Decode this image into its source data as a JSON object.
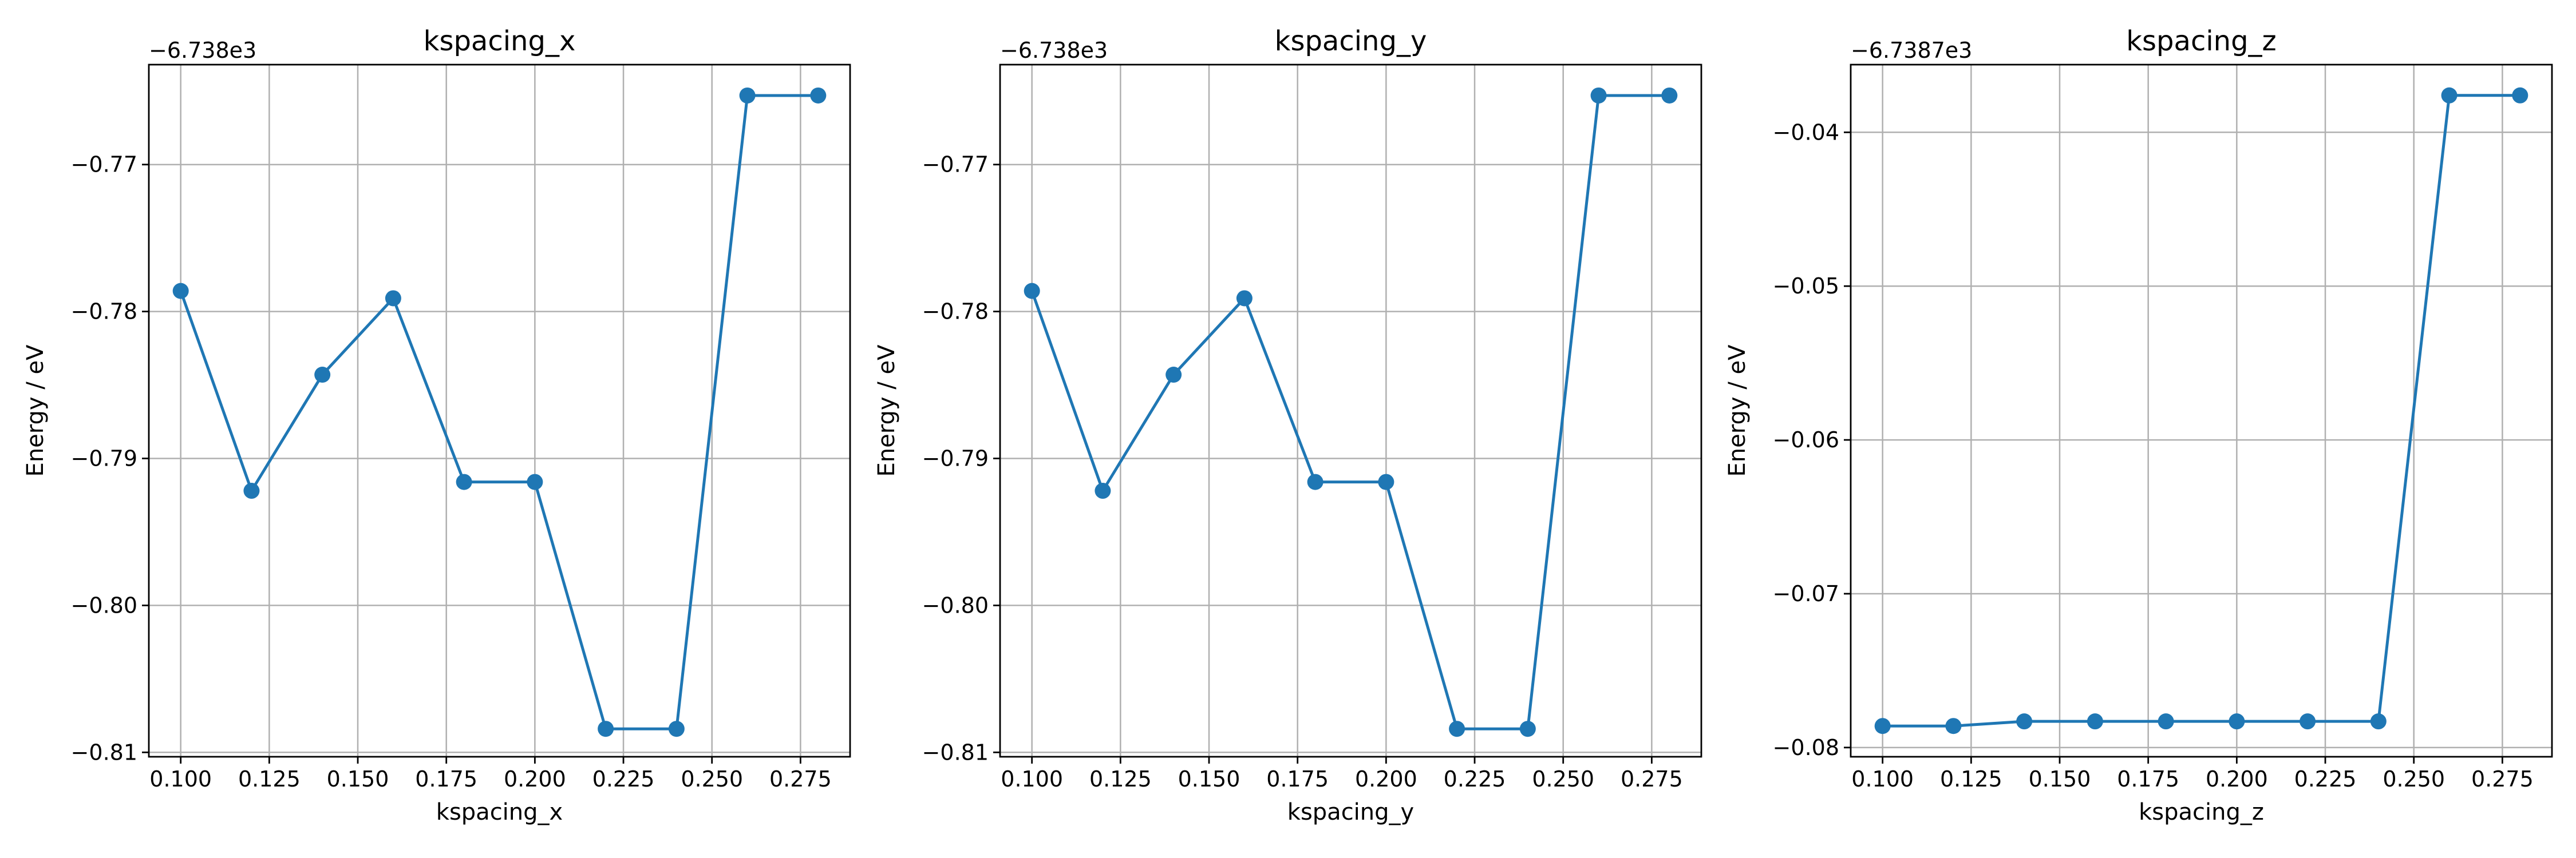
{
  "figure": {
    "background": "#ffffff",
    "series_color": "#1f77b4",
    "grid": true
  },
  "chart_data": [
    {
      "type": "line",
      "title": "kspacing_x",
      "xlabel": "kspacing_x",
      "ylabel": "Energy / eV",
      "y_offset_label": "−6.738e3",
      "x": [
        0.1,
        0.12,
        0.14,
        0.16,
        0.18,
        0.2,
        0.22,
        0.24,
        0.26,
        0.28
      ],
      "y": [
        -0.7786,
        -0.7922,
        -0.7843,
        -0.7791,
        -0.7916,
        -0.7916,
        -0.8084,
        -0.8084,
        -0.7653,
        -0.7653
      ],
      "xlim": [
        0.091,
        0.289
      ],
      "ylim": [
        -0.8103,
        -0.7632
      ],
      "xticks": [
        0.1,
        0.125,
        0.15,
        0.175,
        0.2,
        0.225,
        0.25,
        0.275
      ],
      "xtick_labels": [
        "0.100",
        "0.125",
        "0.150",
        "0.175",
        "0.200",
        "0.225",
        "0.250",
        "0.275"
      ],
      "yticks": [
        -0.81,
        -0.8,
        -0.79,
        -0.78,
        -0.77
      ],
      "ytick_labels": [
        "−0.81",
        "−0.80",
        "−0.79",
        "−0.78",
        "−0.77"
      ]
    },
    {
      "type": "line",
      "title": "kspacing_y",
      "xlabel": "kspacing_y",
      "ylabel": "Energy / eV",
      "y_offset_label": "−6.738e3",
      "x": [
        0.1,
        0.12,
        0.14,
        0.16,
        0.18,
        0.2,
        0.22,
        0.24,
        0.26,
        0.28
      ],
      "y": [
        -0.7786,
        -0.7922,
        -0.7843,
        -0.7791,
        -0.7916,
        -0.7916,
        -0.8084,
        -0.8084,
        -0.7653,
        -0.7653
      ],
      "xlim": [
        0.091,
        0.289
      ],
      "ylim": [
        -0.8103,
        -0.7632
      ],
      "xticks": [
        0.1,
        0.125,
        0.15,
        0.175,
        0.2,
        0.225,
        0.25,
        0.275
      ],
      "xtick_labels": [
        "0.100",
        "0.125",
        "0.150",
        "0.175",
        "0.200",
        "0.225",
        "0.250",
        "0.275"
      ],
      "yticks": [
        -0.81,
        -0.8,
        -0.79,
        -0.78,
        -0.77
      ],
      "ytick_labels": [
        "−0.81",
        "−0.80",
        "−0.79",
        "−0.78",
        "−0.77"
      ]
    },
    {
      "type": "line",
      "title": "kspacing_z",
      "xlabel": "kspacing_z",
      "ylabel": "Energy / eV",
      "y_offset_label": "−6.7387e3",
      "x": [
        0.1,
        0.12,
        0.14,
        0.16,
        0.18,
        0.2,
        0.22,
        0.24,
        0.26,
        0.28
      ],
      "y": [
        -0.0786,
        -0.0786,
        -0.0783,
        -0.0783,
        -0.0783,
        -0.0783,
        -0.0783,
        -0.0783,
        -0.0376,
        -0.0376
      ],
      "xlim": [
        0.091,
        0.289
      ],
      "ylim": [
        -0.0806,
        -0.0356
      ],
      "xticks": [
        0.1,
        0.125,
        0.15,
        0.175,
        0.2,
        0.225,
        0.25,
        0.275
      ],
      "xtick_labels": [
        "0.100",
        "0.125",
        "0.150",
        "0.175",
        "0.200",
        "0.225",
        "0.250",
        "0.275"
      ],
      "yticks": [
        -0.08,
        -0.07,
        -0.06,
        -0.05,
        -0.04
      ],
      "ytick_labels": [
        "−0.08",
        "−0.07",
        "−0.06",
        "−0.05",
        "−0.04"
      ]
    }
  ]
}
